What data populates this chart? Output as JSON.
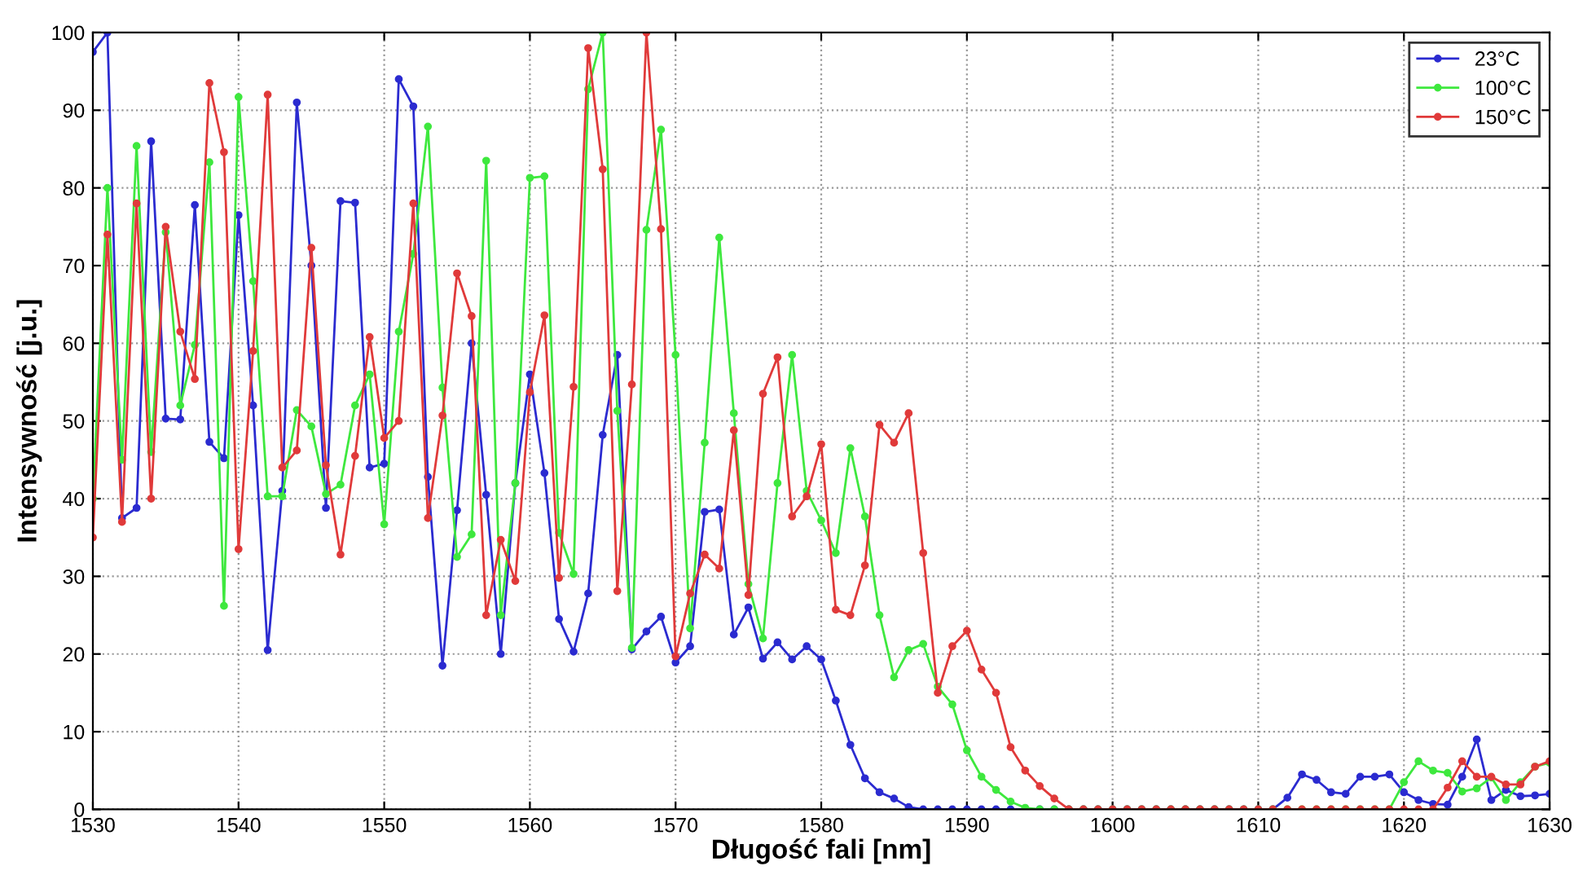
{
  "chart_data": {
    "type": "line",
    "xlabel": "Długość fali [nm]",
    "ylabel": "Intensywność [j.u.]",
    "x": [
      1530,
      1531,
      1532,
      1533,
      1534,
      1535,
      1536,
      1537,
      1538,
      1539,
      1540,
      1541,
      1542,
      1543,
      1544,
      1545,
      1546,
      1547,
      1548,
      1549,
      1550,
      1551,
      1552,
      1553,
      1554,
      1555,
      1556,
      1557,
      1558,
      1559,
      1560,
      1561,
      1562,
      1563,
      1564,
      1565,
      1566,
      1567,
      1568,
      1569,
      1570,
      1571,
      1572,
      1573,
      1574,
      1575,
      1576,
      1577,
      1578,
      1579,
      1580,
      1581,
      1582,
      1583,
      1584,
      1585,
      1586,
      1587,
      1588,
      1589,
      1590,
      1591,
      1592,
      1593,
      1594,
      1595,
      1596,
      1597,
      1598,
      1599,
      1600,
      1601,
      1602,
      1603,
      1604,
      1605,
      1606,
      1607,
      1608,
      1609,
      1610,
      1611,
      1612,
      1613,
      1614,
      1615,
      1616,
      1617,
      1618,
      1619,
      1620,
      1621,
      1622,
      1623,
      1624,
      1625,
      1626,
      1627,
      1628,
      1629,
      1630
    ],
    "series": [
      {
        "name": "23°C",
        "color": "#2b2bd0",
        "values": [
          97.5,
          100,
          37.5,
          38.8,
          86,
          50.3,
          50.2,
          77.8,
          47.3,
          45.2,
          76.5,
          52,
          20.5,
          41,
          91,
          70,
          38.8,
          78.3,
          78.1,
          44,
          44.5,
          94,
          90.5,
          42.8,
          18.5,
          38.5,
          60,
          40.5,
          20,
          42,
          56,
          43.3,
          24.5,
          20.3,
          27.8,
          48.2,
          58.5,
          20.6,
          22.9,
          24.8,
          18.9,
          21,
          38.3,
          38.6,
          22.5,
          26,
          19.4,
          21.5,
          19.3,
          21,
          19.3,
          14,
          8.3,
          4,
          2.2,
          1.4,
          0.3,
          0,
          0,
          0,
          0,
          0,
          0,
          0,
          0,
          0,
          0,
          0,
          0,
          0,
          0,
          0,
          0,
          0,
          0,
          0,
          0,
          0,
          0,
          0,
          0,
          0,
          1.5,
          4.5,
          3.8,
          2.2,
          2,
          4.2,
          4.2,
          4.5,
          2.2,
          1.2,
          0.7,
          0.6,
          4.2,
          9,
          1.2,
          2.5,
          1.7,
          1.8,
          2
        ]
      },
      {
        "name": "100°C",
        "color": "#3ee83e",
        "values": [
          40,
          80,
          45,
          85.4,
          46,
          74.3,
          52,
          59.8,
          83.3,
          26.2,
          91.7,
          68,
          40.3,
          40.3,
          51.4,
          49.3,
          40.6,
          41.8,
          52,
          56,
          36.7,
          61.5,
          71.5,
          87.9,
          54.3,
          32.5,
          35.4,
          83.5,
          25,
          42,
          81.3,
          81.5,
          35.6,
          30.3,
          92.7,
          100,
          51.3,
          20.8,
          74.6,
          87.5,
          58.5,
          23.3,
          47.2,
          73.6,
          51,
          29,
          22,
          42,
          58.5,
          41,
          37.2,
          33,
          46.5,
          37.7,
          25,
          17,
          20.5,
          21.3,
          15.8,
          13.5,
          7.6,
          4.2,
          2.5,
          1,
          0.2,
          0,
          0,
          0,
          0,
          0,
          0,
          0,
          0,
          0,
          0,
          0,
          0,
          0,
          0,
          0,
          0,
          0,
          0,
          0,
          0,
          0,
          0,
          0,
          0,
          0,
          3.5,
          6.2,
          5,
          4.7,
          2.3,
          2.7,
          4.1,
          1.2,
          3.5,
          5.5,
          6
        ]
      },
      {
        "name": "150°C",
        "color": "#e03a3a",
        "values": [
          35,
          74,
          37,
          78,
          40,
          75,
          61.5,
          55.4,
          93.5,
          84.6,
          33.5,
          59,
          92,
          44,
          46.2,
          72.3,
          44.3,
          32.8,
          45.5,
          60.8,
          47.8,
          50,
          78,
          37.5,
          50.7,
          69,
          63.5,
          25,
          34.7,
          29.4,
          53.7,
          63.6,
          29.8,
          54.4,
          98,
          82.4,
          28.1,
          54.7,
          100,
          74.7,
          19.7,
          27.8,
          32.8,
          31,
          48.8,
          27.6,
          53.5,
          58.2,
          37.7,
          40.3,
          47,
          25.7,
          25,
          31.4,
          49.5,
          47.2,
          51,
          33,
          15,
          21,
          23,
          18,
          15,
          8,
          5,
          3,
          1.4,
          0,
          0,
          0,
          0,
          0,
          0,
          0,
          0,
          0,
          0,
          0,
          0,
          0,
          0,
          0,
          0,
          0,
          0,
          0,
          0,
          0,
          0,
          0,
          0,
          0,
          0,
          2.8,
          6.2,
          4.2,
          4.2,
          3.2,
          3.2,
          5.5,
          6.2
        ]
      }
    ],
    "xlim": [
      1530,
      1630
    ],
    "xticks": [
      1530,
      1540,
      1550,
      1560,
      1570,
      1580,
      1590,
      1600,
      1610,
      1620,
      1630
    ],
    "ylim": [
      0,
      100
    ],
    "yticks": [
      0,
      10,
      20,
      30,
      40,
      50,
      60,
      70,
      80,
      90,
      100
    ],
    "grid": true,
    "legend": "top right",
    "marker": "circle",
    "line_style": "solid"
  }
}
